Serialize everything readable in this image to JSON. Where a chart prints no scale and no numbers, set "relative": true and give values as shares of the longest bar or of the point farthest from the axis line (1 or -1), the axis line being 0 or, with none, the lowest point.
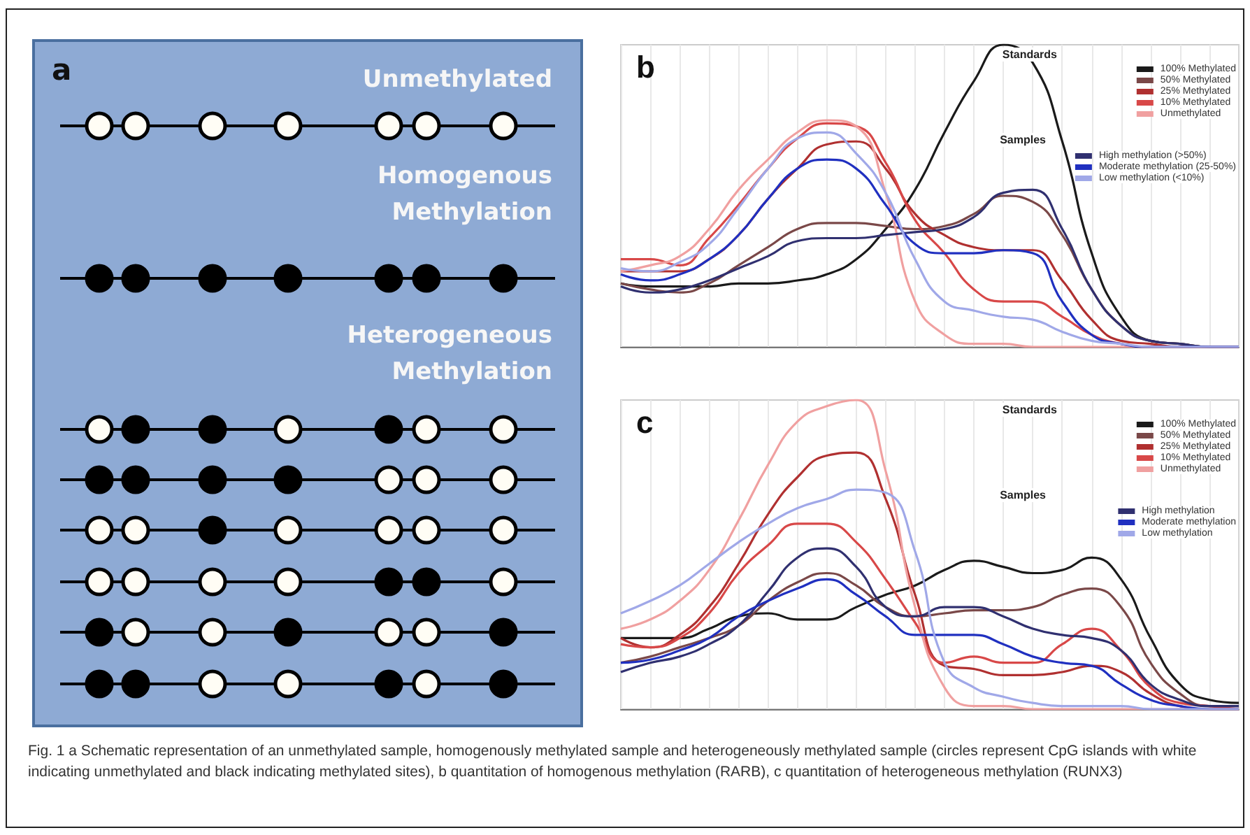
{
  "chart_data": [
    {
      "type": "other",
      "title": "a",
      "annotations": [
        "Unmethylated",
        "Homogenous Methylation",
        "Heterogeneous Methylation",
        "Fig. 1 a Schematic representation of an unmethylated sample, homogenously methylated sample and heterogeneously methylated sample (circles represent CpG islands with white indicating unmethylated and black indicating methylated sites), b quantitation of homogenous methylation (RARB), c quantitation of heterogeneous methylation (RUNX3)"
      ]
    },
    {
      "type": "line",
      "title": "b",
      "relative": true,
      "legend": "top right",
      "legend_title": "Standards",
      "annotations": [
        "Samples"
      ],
      "grid": "x",
      "marker": "none",
      "line_style": "solid",
      "categories": [
        null,
        null,
        null,
        null,
        null,
        null,
        null,
        null,
        null,
        null,
        null,
        null,
        null,
        null,
        null,
        null,
        null,
        null,
        null,
        null,
        null,
        null
      ],
      "series": [
        {
          "name": "100% Methylated",
          "color": "#1a1a1a",
          "values": [
            0.21,
            0.2,
            0.2,
            0.2,
            0.21,
            0.21,
            0.22,
            0.24,
            0.29,
            0.39,
            0.52,
            0.71,
            0.88,
            1.0,
            0.94,
            0.68,
            0.31,
            0.1,
            0.02,
            0.01,
            0,
            0
          ]
        },
        {
          "name": "50% Methylated",
          "color": "#7a4848",
          "values": [
            0.21,
            0.19,
            0.18,
            0.21,
            0.27,
            0.33,
            0.39,
            0.41,
            0.41,
            0.4,
            0.39,
            0.4,
            0.44,
            0.5,
            0.48,
            0.37,
            0.19,
            0.07,
            0.02,
            0.01,
            0,
            0
          ]
        },
        {
          "name": "25% Methylated",
          "color": "#b03030",
          "values": [
            0.25,
            0.25,
            0.25,
            0.29,
            0.37,
            0.49,
            0.59,
            0.67,
            0.68,
            0.59,
            0.44,
            0.37,
            0.33,
            0.32,
            0.32,
            0.22,
            0.09,
            0.02,
            0.01,
            0,
            0,
            0
          ]
        },
        {
          "name": "10% Methylated",
          "color": "#d84848",
          "values": [
            0.29,
            0.29,
            0.27,
            0.36,
            0.47,
            0.59,
            0.69,
            0.74,
            0.73,
            0.61,
            0.42,
            0.31,
            0.19,
            0.15,
            0.15,
            0.1,
            0.04,
            0.01,
            0,
            0,
            0,
            0
          ]
        },
        {
          "name": "Unmethylated",
          "color": "#f0a0a0",
          "values": [
            0.25,
            0.27,
            0.3,
            0.39,
            0.52,
            0.62,
            0.71,
            0.75,
            0.73,
            0.51,
            0.15,
            0.04,
            0.01,
            0.01,
            0,
            0,
            0,
            0,
            0,
            0,
            0,
            0
          ]
        },
        {
          "name": "High methylation (>50%)",
          "color": "#303070",
          "values": [
            0.2,
            0.18,
            0.19,
            0.22,
            0.26,
            0.3,
            0.35,
            0.36,
            0.36,
            0.37,
            0.38,
            0.39,
            0.43,
            0.51,
            0.52,
            0.39,
            0.19,
            0.07,
            0.02,
            0.01,
            0,
            0
          ]
        },
        {
          "name": "Moderate methylation (25-50%)",
          "color": "#2030c0",
          "values": [
            0.24,
            0.22,
            0.24,
            0.29,
            0.37,
            0.49,
            0.59,
            0.62,
            0.59,
            0.47,
            0.34,
            0.31,
            0.31,
            0.32,
            0.31,
            0.15,
            0.04,
            0.01,
            0,
            0,
            0,
            0
          ]
        },
        {
          "name": "Low methylation (<10%)",
          "color": "#a0a8e8",
          "values": [
            0.26,
            0.25,
            0.28,
            0.34,
            0.46,
            0.59,
            0.69,
            0.71,
            0.64,
            0.51,
            0.29,
            0.15,
            0.12,
            0.1,
            0.09,
            0.05,
            0.02,
            0.01,
            0,
            0,
            0,
            0
          ]
        }
      ]
    },
    {
      "type": "line",
      "title": "c",
      "relative": true,
      "legend": "top right",
      "legend_title": "Standards",
      "annotations": [
        "Samples"
      ],
      "grid": "x",
      "marker": "none",
      "line_style": "solid",
      "categories": [
        null,
        null,
        null,
        null,
        null,
        null,
        null,
        null,
        null,
        null,
        null,
        null,
        null,
        null,
        null,
        null,
        null,
        null,
        null,
        null,
        null,
        null
      ],
      "series": [
        {
          "name": "100% Methylated",
          "color": "#1a1a1a",
          "values": [
            0.23,
            0.23,
            0.23,
            0.26,
            0.3,
            0.31,
            0.29,
            0.29,
            0.33,
            0.37,
            0.4,
            0.45,
            0.48,
            0.46,
            0.44,
            0.45,
            0.49,
            0.42,
            0.23,
            0.08,
            0.03,
            0.02
          ]
        },
        {
          "name": "50% Methylated",
          "color": "#7a4848",
          "values": [
            0.15,
            0.17,
            0.2,
            0.23,
            0.27,
            0.35,
            0.41,
            0.44,
            0.4,
            0.33,
            0.3,
            0.31,
            0.32,
            0.32,
            0.33,
            0.37,
            0.39,
            0.33,
            0.15,
            0.05,
            0.01,
            0.01
          ]
        },
        {
          "name": "25% Methylated",
          "color": "#b03030",
          "values": [
            0.23,
            0.2,
            0.24,
            0.33,
            0.47,
            0.63,
            0.75,
            0.82,
            0.83,
            0.68,
            0.37,
            0.14,
            0.13,
            0.11,
            0.11,
            0.12,
            0.14,
            0.12,
            0.05,
            0.01,
            0,
            0
          ]
        },
        {
          "name": "10% Methylated",
          "color": "#d84848",
          "values": [
            0.21,
            0.2,
            0.23,
            0.31,
            0.44,
            0.53,
            0.6,
            0.6,
            0.54,
            0.42,
            0.28,
            0.15,
            0.17,
            0.15,
            0.15,
            0.21,
            0.26,
            0.19,
            0.07,
            0.02,
            0.01,
            0
          ]
        },
        {
          "name": "Unmethylated",
          "color": "#f0a0a0",
          "values": [
            0.26,
            0.29,
            0.35,
            0.45,
            0.61,
            0.79,
            0.93,
            0.98,
            1.0,
            0.77,
            0.33,
            0.07,
            0.01,
            0.01,
            0,
            0,
            0,
            0,
            0,
            0,
            0,
            0
          ]
        },
        {
          "name": "High methylation",
          "color": "#303070",
          "values": [
            0.12,
            0.15,
            0.17,
            0.21,
            0.27,
            0.38,
            0.49,
            0.52,
            0.46,
            0.33,
            0.3,
            0.33,
            0.33,
            0.3,
            0.26,
            0.24,
            0.23,
            0.19,
            0.08,
            0.03,
            0.01,
            0.01
          ]
        },
        {
          "name": "Moderate methylation",
          "color": "#2030c0",
          "values": [
            0.15,
            0.16,
            0.19,
            0.23,
            0.3,
            0.35,
            0.39,
            0.42,
            0.37,
            0.3,
            0.24,
            0.24,
            0.24,
            0.21,
            0.17,
            0.15,
            0.14,
            0.08,
            0.03,
            0.01,
            0,
            0
          ]
        },
        {
          "name": "Low methylation",
          "color": "#a0a8e8",
          "values": [
            0.31,
            0.35,
            0.4,
            0.47,
            0.54,
            0.6,
            0.65,
            0.68,
            0.71,
            0.7,
            0.51,
            0.15,
            0.07,
            0.04,
            0.02,
            0.01,
            0.01,
            0.01,
            0,
            0,
            0,
            0
          ]
        }
      ]
    }
  ]
}
